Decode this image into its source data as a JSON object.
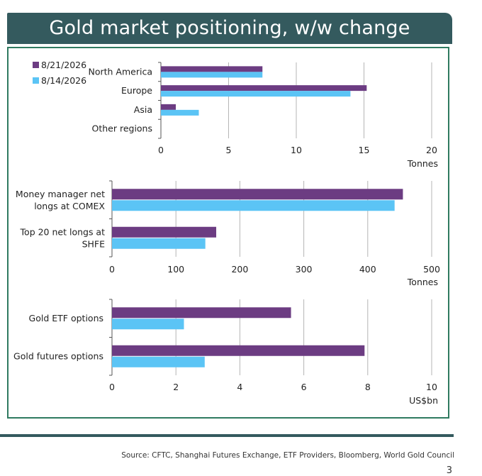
{
  "title": "Gold market positioning, w/w change",
  "source": "Source: CFTC, Shanghai Futures Exchange, ETF Providers, Bloomberg, World Gold Council",
  "page_number": "3",
  "colors": {
    "series_current": "#6c3c82",
    "series_previous": "#5bc4f5",
    "header_bg": "#345a5e",
    "frame": "#2f7a60"
  },
  "chart_data": [
    {
      "type": "bar",
      "orientation": "horizontal",
      "categories": [
        "North America",
        "Europe",
        "Asia",
        "Other regions"
      ],
      "series": [
        {
          "name": "8/21/2026",
          "values": [
            7.5,
            15.2,
            1.1,
            0
          ]
        },
        {
          "name": "8/14/2026",
          "values": [
            7.5,
            14.0,
            2.8,
            0
          ]
        }
      ],
      "xlim": [
        0,
        20
      ],
      "xticks": [
        0,
        5,
        10,
        15,
        20
      ],
      "xlabel": "Tonnes",
      "legend": "top-left",
      "grid": "vertical"
    },
    {
      "type": "bar",
      "orientation": "horizontal",
      "categories": [
        "Money manager net longs at COMEX",
        "Top 20 net longs at SHFE"
      ],
      "series": [
        {
          "name": "8/21/2026",
          "values": [
            455,
            163
          ]
        },
        {
          "name": "8/14/2026",
          "values": [
            442,
            146
          ]
        }
      ],
      "xlim": [
        0,
        500
      ],
      "xticks": [
        0,
        100,
        200,
        300,
        400,
        500
      ],
      "xlabel": "Tonnes",
      "grid": "vertical"
    },
    {
      "type": "bar",
      "orientation": "horizontal",
      "categories": [
        "Gold ETF options",
        "Gold futures options"
      ],
      "series": [
        {
          "name": "8/21/2026",
          "values": [
            5.6,
            7.9
          ]
        },
        {
          "name": "8/14/2026",
          "values": [
            2.25,
            2.9
          ]
        }
      ],
      "xlim": [
        0,
        10
      ],
      "xticks": [
        0,
        2,
        4,
        6,
        8,
        10
      ],
      "xlabel": "US$bn",
      "grid": "vertical"
    }
  ]
}
